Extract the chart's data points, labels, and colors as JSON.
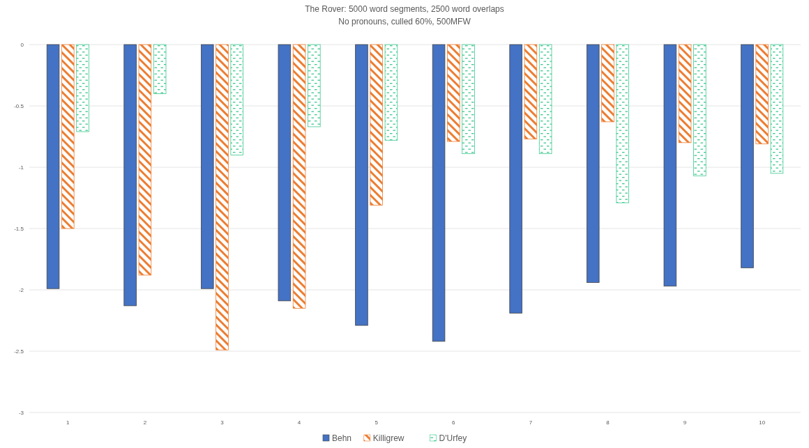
{
  "chart_data": {
    "type": "bar",
    "title": "The Rover: 5000 word segments, 2500 word overlaps",
    "subtitle": "No pronouns, culled 60%, 500MFW",
    "categories": [
      "1",
      "2",
      "3",
      "4",
      "5",
      "6",
      "7",
      "8",
      "9",
      "10"
    ],
    "series": [
      {
        "name": "Behn",
        "color": "#4472c4",
        "values": [
          -1.99,
          -2.13,
          -1.99,
          -2.09,
          -2.29,
          -2.42,
          -2.19,
          -1.94,
          -1.97,
          -1.82
        ]
      },
      {
        "name": "Killigrew",
        "color": "#ed7d31",
        "values": [
          -1.5,
          -1.88,
          -2.49,
          -2.15,
          -1.31,
          -0.79,
          -0.77,
          -0.63,
          -0.8,
          -0.81
        ]
      },
      {
        "name": "D'Urfey",
        "color": "#3cc98f",
        "values": [
          -0.71,
          -0.4,
          -0.9,
          -0.67,
          -0.78,
          -0.89,
          -0.89,
          -1.29,
          -1.07,
          -1.05
        ]
      }
    ],
    "ylim": [
      -3,
      0
    ],
    "yticks": [
      -3,
      -2.5,
      -2,
      -1.5,
      -1,
      -0.5,
      0
    ],
    "grid": "y",
    "legend": "bottom"
  }
}
